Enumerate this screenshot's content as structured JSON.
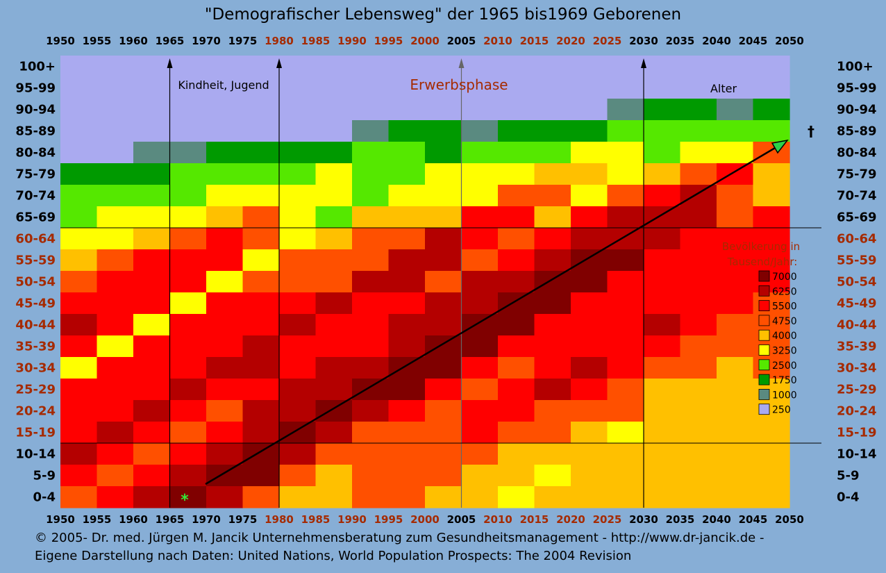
{
  "chart_data": {
    "type": "heatmap",
    "title": "\"Demografischer Lebensweg\" der 1965 bis1969 Geborenen",
    "x_labels": [
      "1950",
      "1955",
      "1960",
      "1965",
      "1970",
      "1975",
      "1980",
      "1985",
      "1990",
      "1995",
      "2000",
      "2005",
      "2010",
      "2015",
      "2020",
      "2025",
      "2030",
      "2035",
      "2040",
      "2045",
      "2050"
    ],
    "x_label_colors": [
      "#000000",
      "#000000",
      "#000000",
      "#000000",
      "#000000",
      "#000000",
      "#a52a00",
      "#a52a00",
      "#a52a00",
      "#a52a00",
      "#a52a00",
      "#000000",
      "#a52a00",
      "#a52a00",
      "#a52a00",
      "#a52a00",
      "#000000",
      "#000000",
      "#000000",
      "#000000",
      "#000000"
    ],
    "y_labels": [
      "100+",
      "95-99",
      "90-94",
      "85-89",
      "80-84",
      "75-79",
      "70-74",
      "65-69",
      "60-64",
      "55-59",
      "50-54",
      "45-49",
      "40-44",
      "35-39",
      "30-34",
      "25-29",
      "20-24",
      "15-19",
      "10-14",
      "5-9",
      "0-4"
    ],
    "y_label_colors": [
      "#000000",
      "#000000",
      "#000000",
      "#000000",
      "#000000",
      "#000000",
      "#000000",
      "#000000",
      "#a52a00",
      "#a52a00",
      "#a52a00",
      "#a52a00",
      "#a52a00",
      "#a52a00",
      "#a52a00",
      "#a52a00",
      "#a52a00",
      "#a52a00",
      "#000000",
      "#000000",
      "#000000"
    ],
    "value_unit": "Tausend/Jahr",
    "grid": [
      [
        250,
        250,
        250,
        250,
        250,
        250,
        250,
        250,
        250,
        250,
        250,
        250,
        250,
        250,
        250,
        250,
        250,
        250,
        250,
        250
      ],
      [
        250,
        250,
        250,
        250,
        250,
        250,
        250,
        250,
        250,
        250,
        250,
        250,
        250,
        250,
        250,
        500,
        500,
        500,
        500,
        500
      ],
      [
        250,
        250,
        250,
        250,
        250,
        250,
        250,
        250,
        250,
        500,
        500,
        500,
        500,
        500,
        500,
        1000,
        1750,
        1750,
        1000,
        1750
      ],
      [
        250,
        250,
        500,
        500,
        500,
        500,
        500,
        500,
        1000,
        1750,
        1750,
        1000,
        1750,
        1750,
        2000,
        2250,
        2250,
        2250,
        2500,
        2750
      ],
      [
        500,
        500,
        1000,
        1000,
        1750,
        1750,
        1750,
        2000,
        2250,
        2250,
        1750,
        2500,
        2500,
        2500,
        3000,
        3000,
        2750,
        3250,
        3500,
        4500
      ],
      [
        1750,
        1750,
        2000,
        2250,
        2250,
        2250,
        2750,
        3000,
        2750,
        2250,
        3000,
        3000,
        3000,
        4250,
        4000,
        3000,
        4250,
        5000,
        5500,
        4000
      ],
      [
        2250,
        2250,
        2500,
        2750,
        3000,
        3250,
        3500,
        3250,
        2500,
        3250,
        3500,
        3500,
        5000,
        4750,
        3500,
        5000,
        5500,
        6000,
        4750,
        4250
      ],
      [
        2750,
        3000,
        3000,
        3500,
        4250,
        4750,
        3500,
        2750,
        4000,
        4000,
        4000,
        5500,
        5500,
        4250,
        5500,
        6000,
        6500,
        6250,
        5000,
        5500
      ],
      [
        3250,
        3500,
        4250,
        5000,
        5500,
        4750,
        3000,
        4250,
        4750,
        4750,
        6000,
        5500,
        4750,
        5750,
        6000,
        6500,
        6500,
        5500,
        5500,
        5500
      ],
      [
        4000,
        4750,
        5500,
        5500,
        5500,
        3250,
        4750,
        5000,
        5000,
        6000,
        6000,
        4750,
        5750,
        6000,
        6750,
        7000,
        5500,
        5250,
        5500,
        5500
      ],
      [
        5000,
        5750,
        5750,
        5500,
        3250,
        5000,
        5000,
        5000,
        6250,
        6000,
        5000,
        6250,
        6250,
        6750,
        6750,
        5500,
        5500,
        5500,
        5500,
        5500
      ],
      [
        5750,
        5750,
        5500,
        3250,
        5500,
        5500,
        5500,
        6250,
        5750,
        5500,
        6000,
        6500,
        6750,
        6750,
        5500,
        5500,
        5750,
        5750,
        5500,
        5000
      ],
      [
        6000,
        5500,
        3250,
        5500,
        5500,
        5500,
        6250,
        5750,
        5500,
        6000,
        6500,
        6750,
        6750,
        5500,
        5500,
        5250,
        6000,
        5500,
        5000,
        4750
      ],
      [
        5500,
        3250,
        5500,
        5500,
        5750,
        6250,
        5750,
        5500,
        5750,
        6250,
        6750,
        6750,
        5500,
        5500,
        5500,
        5500,
        5500,
        5000,
        4750,
        4500
      ],
      [
        3250,
        5500,
        5500,
        5500,
        6250,
        6000,
        5500,
        6000,
        6250,
        6750,
        6750,
        5500,
        5000,
        5500,
        6000,
        5500,
        5000,
        4750,
        4250,
        4500
      ],
      [
        5500,
        5500,
        5500,
        6250,
        5750,
        5500,
        6000,
        6250,
        6750,
        6750,
        5500,
        5000,
        5500,
        6000,
        5500,
        5000,
        4250,
        4250,
        4250,
        4250
      ],
      [
        5500,
        5500,
        6250,
        5750,
        5000,
        6000,
        6250,
        6750,
        6250,
        5500,
        4750,
        5500,
        5500,
        5000,
        4750,
        4500,
        4000,
        4250,
        4250,
        4000
      ],
      [
        5500,
        6250,
        5750,
        5000,
        5750,
        6250,
        6750,
        6250,
        4750,
        4750,
        5000,
        5500,
        4750,
        4500,
        4250,
        3500,
        4000,
        4000,
        4000,
        4000
      ],
      [
        6250,
        5750,
        5000,
        5500,
        6000,
        6750,
        6250,
        4750,
        4500,
        4750,
        5000,
        4500,
        4250,
        3750,
        3750,
        3750,
        4000,
        4000,
        4000,
        4000
      ],
      [
        5500,
        4750,
        5750,
        6000,
        6750,
        6750,
        4750,
        4000,
        4750,
        5000,
        4500,
        4250,
        3750,
        3500,
        3750,
        4000,
        4000,
        4000,
        4000,
        4000
      ],
      [
        5000,
        5500,
        6000,
        6750,
        6250,
        4750,
        4250,
        4250,
        4500,
        4500,
        4000,
        3750,
        3500,
        3750,
        4000,
        4000,
        3750,
        3750,
        4000,
        4000
      ]
    ],
    "legend": {
      "title_line1": "Bevölkerung in",
      "title_line2": "Tausend/Jahr:",
      "position": "right",
      "entries": [
        {
          "label": "7000",
          "value": 7000
        },
        {
          "label": "6250",
          "value": 6250
        },
        {
          "label": "5500",
          "value": 5500
        },
        {
          "label": "4750",
          "value": 4750
        },
        {
          "label": "4000",
          "value": 4000
        },
        {
          "label": "3250",
          "value": 3250
        },
        {
          "label": "2500",
          "value": 2500
        },
        {
          "label": "1750",
          "value": 1750
        },
        {
          "label": "1000",
          "value": 1000
        },
        {
          "label": "250",
          "value": 250
        }
      ]
    },
    "phase_labels": {
      "childhood": "Kindheit, Jugend",
      "working": "Erwerbsphase",
      "old_age": "Alter"
    },
    "phase_lines_years": [
      1965,
      1980,
      2005,
      2030
    ],
    "birth_marker": "*",
    "death_marker": "†"
  },
  "colors": {
    "c7000": "#800000",
    "c6250": "#b40000",
    "c5500": "#ff0000",
    "c4750": "#ff5000",
    "c4000": "#ffc000",
    "c3250": "#ffff00",
    "c2500": "#55e800",
    "c1750": "#009a00",
    "c1000": "#5a8a80",
    "c250": "#aaaaf0",
    "accent_red": "#a52a00",
    "background": "#87aed6"
  },
  "footer": {
    "line1": "© 2005-  Dr. med. Jürgen M. Jancik Unternehmensberatung zum Gesundheitsmanagement - http://www.dr-jancik.de -",
    "line2": "Eigene Darstellung nach Daten: United Nations, World Population Prospects: The 2004 Revision"
  }
}
